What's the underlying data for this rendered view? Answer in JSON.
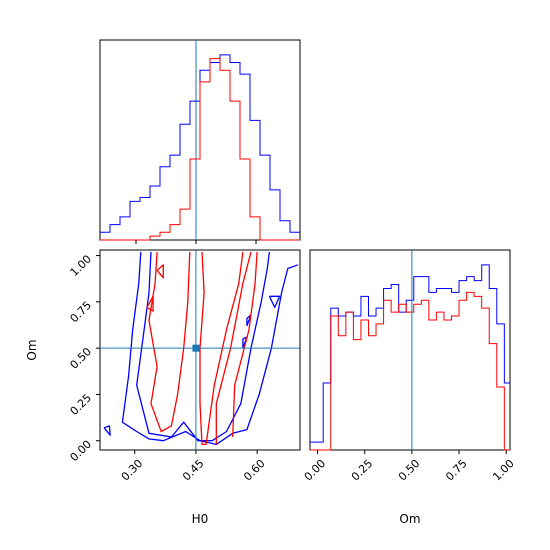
{
  "chart_data": {
    "type": "corner",
    "parameters": [
      "H0",
      "Om"
    ],
    "truth": {
      "H0": 0.45,
      "Om": 0.5
    },
    "colors": {
      "series_a": "#0000ff",
      "series_b": "#ff0000",
      "truth": "#1f77b4"
    },
    "panels": {
      "h0_hist": {
        "type": "histogram",
        "xlim": [
          0.21,
          0.71
        ],
        "bins": [
          0.21,
          0.235,
          0.26,
          0.285,
          0.31,
          0.335,
          0.36,
          0.385,
          0.41,
          0.435,
          0.46,
          0.485,
          0.51,
          0.535,
          0.56,
          0.585,
          0.61,
          0.635,
          0.66,
          0.685,
          0.71
        ],
        "series": [
          {
            "values": [
              2,
              4,
              6,
              10,
              11,
              14,
              19,
              22,
              30,
              36,
              44,
              46,
              48,
              46,
              43,
              31,
              22,
              13,
              5,
              2
            ]
          },
          {
            "values": [
              0,
              0,
              0,
              0,
              0,
              1,
              2,
              4,
              8,
              21,
              41,
              47,
              44,
              36,
              21,
              6,
              0,
              0,
              0,
              0
            ]
          }
        ]
      },
      "om_hist": {
        "type": "histogram",
        "xlim": [
          -0.04,
          1.02
        ],
        "xticks": [
          "0.00",
          "0.25",
          "0.50",
          "0.75",
          "1.00"
        ],
        "bins": [
          -0.04,
          0.03,
          0.07,
          0.11,
          0.15,
          0.19,
          0.23,
          0.27,
          0.31,
          0.35,
          0.39,
          0.43,
          0.47,
          0.51,
          0.55,
          0.59,
          0.63,
          0.67,
          0.71,
          0.75,
          0.79,
          0.83,
          0.87,
          0.91,
          0.95,
          0.99,
          1.02
        ],
        "series": [
          {
            "values": [
              2,
              17,
              36,
              34,
              35,
              34,
              39,
              34,
              36,
              41,
              42,
              35,
              38,
              44,
              44,
              40,
              41,
              41,
              40,
              43,
              44,
              43,
              47,
              41,
              32,
              17
            ]
          },
          {
            "values": [
              0,
              0,
              34,
              29,
              35,
              28,
              33,
              29,
              32,
              38,
              35,
              37,
              35,
              37,
              38,
              33,
              35,
              33,
              34,
              38,
              40,
              39,
              36,
              27,
              16,
              0
            ]
          }
        ]
      },
      "joint": {
        "type": "contour",
        "xlim": [
          0.215,
          0.705
        ],
        "ylim": [
          -0.05,
          1.03
        ],
        "xticks": [
          "0.30",
          "0.45",
          "0.60"
        ],
        "yticks": [
          "0.00",
          "0.25",
          "0.50",
          "0.75",
          "1.00"
        ],
        "series": [
          {
            "contours": [
              [
                [
                  0.315,
                  1.02
                ],
                [
                  0.31,
                  0.85
                ],
                [
                  0.295,
                  0.6
                ],
                [
                  0.285,
                  0.35
                ],
                [
                  0.27,
                  0.1
                ],
                [
                  0.305,
                  0.05
                ],
                [
                  0.335,
                  0.01
                ],
                [
                  0.37,
                  0.0
                ],
                [
                  0.425,
                  0.05
                ],
                [
                  0.46,
                  0.0
                ],
                [
                  0.5,
                  -0.02
                ],
                [
                  0.54,
                  0.04
                ],
                [
                  0.575,
                  0.06
                ],
                [
                  0.605,
                  0.25
                ],
                [
                  0.635,
                  0.5
                ],
                [
                  0.66,
                  0.8
                ],
                [
                  0.675,
                  0.93
                ],
                [
                  0.7,
                  0.95
                ]
              ],
              [
                [
                  0.34,
                  1.02
                ],
                [
                  0.335,
                  0.8
                ],
                [
                  0.32,
                  0.55
                ],
                [
                  0.305,
                  0.3
                ],
                [
                  0.335,
                  0.04
                ],
                [
                  0.39,
                  0.02
                ],
                [
                  0.42,
                  0.1
                ],
                [
                  0.455,
                  0.0
                ],
                [
                  0.49,
                  0.0
                ],
                [
                  0.525,
                  0.05
                ],
                [
                  0.56,
                  0.2
                ],
                [
                  0.585,
                  0.5
                ],
                [
                  0.61,
                  0.75
                ],
                [
                  0.625,
                  0.93
                ],
                [
                  0.63,
                  1.02
                ]
              ],
              [
                [
                  0.225,
                  0.07
                ],
                [
                  0.24,
                  0.03
                ],
                [
                  0.238,
                  0.08
                ],
                [
                  0.225,
                  0.07
                ]
              ],
              [
                [
                  0.63,
                  0.78
                ],
                [
                  0.655,
                  0.78
                ],
                [
                  0.643,
                  0.72
                ],
                [
                  0.63,
                  0.78
                ]
              ],
              [
                [
                  0.575,
                  0.62
                ],
                [
                  0.585,
                  0.68
                ],
                [
                  0.575,
                  0.66
                ],
                [
                  0.575,
                  0.62
                ]
              ],
              [
                [
                  0.565,
                  0.5
                ],
                [
                  0.575,
                  0.56
                ],
                [
                  0.565,
                  0.55
                ],
                [
                  0.565,
                  0.5
                ]
              ]
            ]
          },
          {
            "contours": [
              [
                [
                  0.355,
                  1.02
                ],
                [
                  0.35,
                  0.85
                ],
                [
                  0.335,
                  0.65
                ],
                [
                  0.355,
                  0.4
                ],
                [
                  0.34,
                  0.2
                ],
                [
                  0.365,
                  0.05
                ],
                [
                  0.39,
                  0.08
                ],
                [
                  0.405,
                  0.25
                ],
                [
                  0.42,
                  0.5
                ],
                [
                  0.43,
                  0.75
                ],
                [
                  0.435,
                  1.02
                ]
              ],
              [
                [
                  0.465,
                  1.02
                ],
                [
                  0.47,
                  0.8
                ],
                [
                  0.46,
                  0.5
                ],
                [
                  0.46,
                  0.2
                ],
                [
                  0.465,
                  -0.02
                ],
                [
                  0.475,
                  -0.02
                ],
                [
                  0.495,
                  0.3
                ],
                [
                  0.525,
                  0.6
                ],
                [
                  0.555,
                  0.85
                ],
                [
                  0.565,
                  1.02
                ]
              ],
              [
                [
                  0.5,
                  -0.02
                ],
                [
                  0.5,
                  0.2
                ],
                [
                  0.535,
                  0.5
                ],
                [
                  0.565,
                  0.85
                ],
                [
                  0.585,
                  1.02
                ]
              ],
              [
                [
                  0.54,
                  0.02
                ],
                [
                  0.545,
                  0.3
                ],
                [
                  0.58,
                  0.6
                ],
                [
                  0.595,
                  0.85
                ],
                [
                  0.6,
                  1.02
                ]
              ],
              [
                [
                  0.355,
                  0.92
                ],
                [
                  0.37,
                  0.95
                ],
                [
                  0.37,
                  0.88
                ],
                [
                  0.355,
                  0.92
                ]
              ],
              [
                [
                  0.33,
                  0.72
                ],
                [
                  0.345,
                  0.78
                ],
                [
                  0.345,
                  0.7
                ],
                [
                  0.33,
                  0.72
                ]
              ]
            ]
          }
        ]
      }
    }
  },
  "labels": {
    "x_h0": "H0",
    "x_om": "Om",
    "y_om": "Om"
  }
}
